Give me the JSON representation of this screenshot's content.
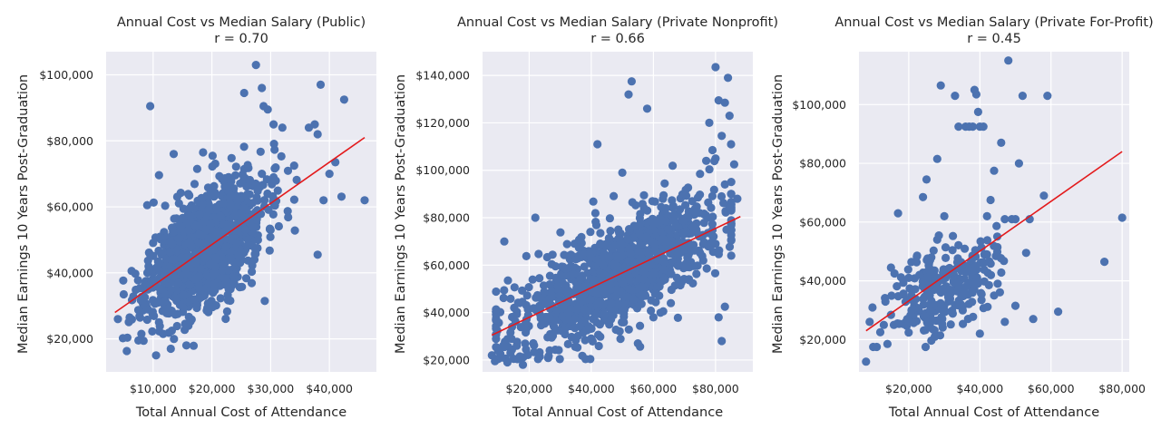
{
  "chart_data": [
    {
      "type": "scatter",
      "title": "Annual Cost vs Median Salary (Public)",
      "subtitle": "r = 0.70",
      "xlabel": "Total Annual Cost of Attendance",
      "ylabel": "Median Earnings 10 Years Post-Graduation",
      "xlim": [
        2000,
        48000
      ],
      "ylim": [
        10000,
        107000
      ],
      "xticks": [
        10000,
        20000,
        30000,
        40000
      ],
      "xtick_labels": [
        "$10,000",
        "$20,000",
        "$30,000",
        "$40,000"
      ],
      "yticks": [
        20000,
        40000,
        60000,
        80000,
        100000
      ],
      "ytick_labels": [
        "$20,000",
        "$40,000",
        "$60,000",
        "$80,000",
        "$100,000"
      ],
      "grid": true,
      "trend_line": {
        "x": [
          3500,
          46000
        ],
        "y": [
          28000,
          81000
        ],
        "color": "#e31a1c"
      },
      "point_color": "#4c72b0",
      "cloud": {
        "x_center": 19000,
        "x_sd": 5000,
        "slope": 1.25,
        "intercept": 24000,
        "y_sd": 8500,
        "n": 1200,
        "seed": 11
      },
      "outliers": [
        [
          4000,
          26000
        ],
        [
          5000,
          33500
        ],
        [
          6000,
          26500
        ],
        [
          7500,
          19500
        ],
        [
          8000,
          21500
        ],
        [
          9000,
          60500
        ],
        [
          9500,
          90500
        ],
        [
          10500,
          15000
        ],
        [
          11000,
          25000
        ],
        [
          13000,
          17000
        ],
        [
          13500,
          76000
        ],
        [
          16000,
          24000
        ],
        [
          17500,
          71500
        ],
        [
          18500,
          76500
        ],
        [
          22000,
          68000
        ],
        [
          25500,
          94500
        ],
        [
          27500,
          103000
        ],
        [
          28500,
          96000
        ],
        [
          28800,
          90500
        ],
        [
          29000,
          31500
        ],
        [
          29500,
          89500
        ],
        [
          30500,
          85000
        ],
        [
          32000,
          84000
        ],
        [
          34000,
          72500
        ],
        [
          36500,
          84000
        ],
        [
          37500,
          85000
        ],
        [
          38000,
          45500
        ],
        [
          38500,
          97000
        ],
        [
          38000,
          82000
        ],
        [
          39000,
          62000
        ],
        [
          40000,
          70000
        ],
        [
          41000,
          73500
        ],
        [
          42500,
          92500
        ],
        [
          46000,
          62000
        ]
      ]
    },
    {
      "type": "scatter",
      "title": "Annual Cost vs Median Salary (Private Nonprofit)",
      "subtitle": "r = 0.66",
      "xlabel": "Total Annual Cost of Attendance",
      "ylabel": "Median Earnings 10 Years Post-Graduation",
      "xlim": [
        5000,
        92000
      ],
      "ylim": [
        15000,
        150000
      ],
      "xticks": [
        20000,
        40000,
        60000,
        80000
      ],
      "xtick_labels": [
        "$20,000",
        "$40,000",
        "$60,000",
        "$80,000"
      ],
      "yticks": [
        20000,
        40000,
        60000,
        80000,
        100000,
        120000,
        140000
      ],
      "ytick_labels": [
        "$20,000",
        "$40,000",
        "$60,000",
        "$80,000",
        "$100,000",
        "$120,000",
        "$140,000"
      ],
      "grid": true,
      "trend_line": {
        "x": [
          8000,
          88000
        ],
        "y": [
          30500,
          80500
        ],
        "color": "#e31a1c"
      },
      "point_color": "#4c72b0",
      "cloud": {
        "x_center": 48000,
        "x_sd": 17000,
        "slope": 0.62,
        "intercept": 26000,
        "y_sd": 11000,
        "n": 1100,
        "seed": 23
      },
      "outliers": [
        [
          8000,
          22000
        ],
        [
          9000,
          19500
        ],
        [
          10000,
          24000
        ],
        [
          11000,
          21000
        ],
        [
          12000,
          25500
        ],
        [
          13000,
          19000
        ],
        [
          14000,
          23000
        ],
        [
          15000,
          20500
        ],
        [
          16000,
          26000
        ],
        [
          17000,
          21500
        ],
        [
          18000,
          18000
        ],
        [
          19000,
          24500
        ],
        [
          12000,
          70000
        ],
        [
          22000,
          80000
        ],
        [
          42000,
          111000
        ],
        [
          52000,
          132000
        ],
        [
          53000,
          137500
        ],
        [
          58000,
          126000
        ],
        [
          64000,
          84000
        ],
        [
          75000,
          98500
        ],
        [
          77000,
          104000
        ],
        [
          78000,
          120000
        ],
        [
          79000,
          108500
        ],
        [
          80000,
          143500
        ],
        [
          81000,
          129500
        ],
        [
          83000,
          128500
        ],
        [
          84000,
          139000
        ],
        [
          84500,
          123000
        ],
        [
          85000,
          111000
        ],
        [
          86000,
          102500
        ],
        [
          82000,
          114500
        ],
        [
          83000,
          94000
        ],
        [
          80000,
          105000
        ],
        [
          81000,
          38000
        ],
        [
          83000,
          42500
        ],
        [
          82000,
          28000
        ],
        [
          85000,
          90000
        ],
        [
          87000,
          88000
        ],
        [
          60000,
          38000
        ],
        [
          55000,
          27000
        ],
        [
          45000,
          48000
        ],
        [
          50000,
          99000
        ]
      ]
    },
    {
      "type": "scatter",
      "title": "Annual Cost vs Median Salary (Private For-Profit)",
      "subtitle": "r = 0.45",
      "xlabel": "Total Annual Cost of Attendance",
      "ylabel": "Median Earnings 10 Years Post-Graduation",
      "xlim": [
        6000,
        82000
      ],
      "ylim": [
        9000,
        118000
      ],
      "xticks": [
        20000,
        40000,
        60000,
        80000
      ],
      "xtick_labels": [
        "$20,000",
        "$40,000",
        "$60,000",
        "$80,000"
      ],
      "yticks": [
        20000,
        40000,
        60000,
        80000,
        100000
      ],
      "ytick_labels": [
        "$20,000",
        "$40,000",
        "$60,000",
        "$80,000",
        "$100,000"
      ],
      "grid": true,
      "trend_line": {
        "x": [
          8000,
          80000
        ],
        "y": [
          23000,
          84000
        ],
        "color": "#e31a1c"
      },
      "point_color": "#4c72b0",
      "cloud": {
        "x_center": 30000,
        "x_sd": 7000,
        "slope": 0.5,
        "intercept": 23000,
        "y_sd": 7500,
        "n": 250,
        "seed": 37
      },
      "outliers": [
        [
          8000,
          12500
        ],
        [
          9000,
          26000
        ],
        [
          10000,
          17500
        ],
        [
          11000,
          17500
        ],
        [
          12000,
          22500
        ],
        [
          13000,
          25000
        ],
        [
          14000,
          18500
        ],
        [
          15000,
          44500
        ],
        [
          16000,
          42500
        ],
        [
          17000,
          63000
        ],
        [
          20000,
          41000
        ],
        [
          24000,
          68500
        ],
        [
          25000,
          74500
        ],
        [
          28000,
          81500
        ],
        [
          29000,
          106500
        ],
        [
          30000,
          62000
        ],
        [
          33000,
          103000
        ],
        [
          34000,
          92500
        ],
        [
          36000,
          92500
        ],
        [
          37000,
          92500
        ],
        [
          38000,
          92500
        ],
        [
          38500,
          105000
        ],
        [
          39000,
          103500
        ],
        [
          39500,
          97500
        ],
        [
          40000,
          92500
        ],
        [
          41000,
          92500
        ],
        [
          42000,
          62000
        ],
        [
          43000,
          67500
        ],
        [
          44000,
          77500
        ],
        [
          46000,
          87000
        ],
        [
          47000,
          61000
        ],
        [
          48000,
          115000
        ],
        [
          49000,
          61000
        ],
        [
          50000,
          61000
        ],
        [
          51000,
          80000
        ],
        [
          52000,
          103000
        ],
        [
          53000,
          49500
        ],
        [
          54000,
          61000
        ],
        [
          55000,
          27000
        ],
        [
          58000,
          69000
        ],
        [
          59000,
          103000
        ],
        [
          62000,
          29500
        ],
        [
          75000,
          46500
        ],
        [
          80000,
          61500
        ],
        [
          47000,
          26000
        ],
        [
          50000,
          31500
        ],
        [
          40000,
          22000
        ],
        [
          45000,
          39000
        ],
        [
          36000,
          38000
        ],
        [
          31000,
          44000
        ],
        [
          28000,
          54000
        ],
        [
          26000,
          47000
        ],
        [
          23000,
          42000
        ],
        [
          42000,
          49000
        ],
        [
          44000,
          35000
        ]
      ]
    }
  ]
}
